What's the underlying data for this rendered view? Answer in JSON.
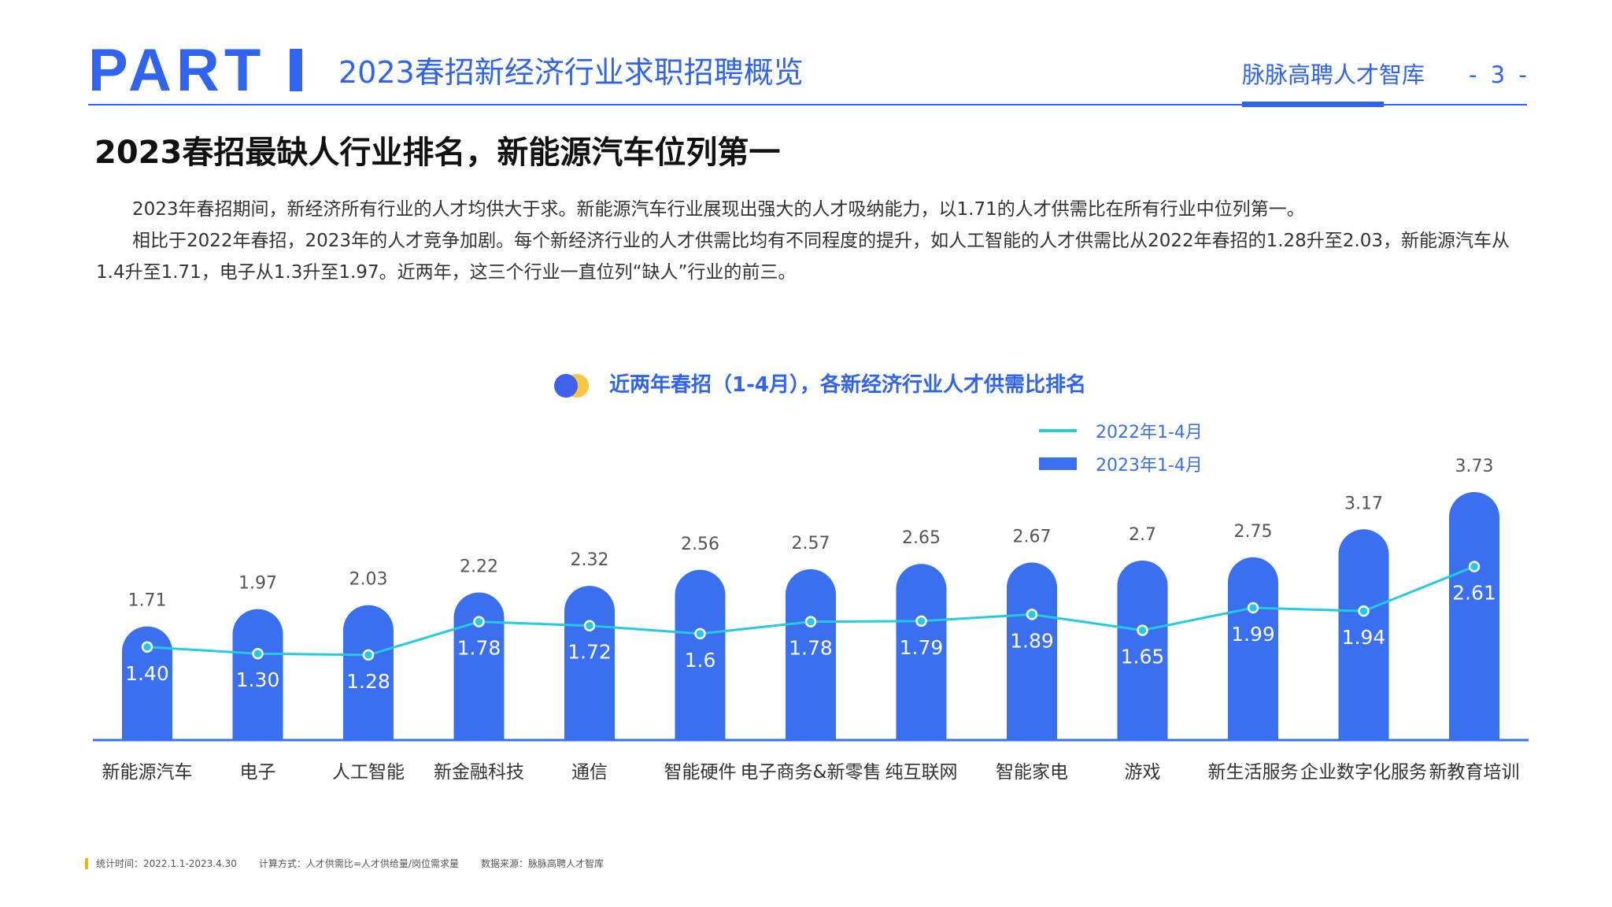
{
  "header": {
    "part_label": "PART",
    "section_title": "2023春招新经济行业求职招聘概览",
    "brand": "脉脉高聘人才智库",
    "page_number": "- 3 -"
  },
  "headline": "2023春招最缺人行业排名，新能源汽车位列第一",
  "body": {
    "paragraph_1": "2023年春招期间，新经济所有行业的人才均供大于求。新能源汽车行业展现出强大的人才吸纳能力，以1.71的人才供需比在所有行业中位列第一。",
    "paragraph_2": "相比于2022年春招，2023年的人才竞争加剧。每个新经济行业的人才供需比均有不同程度的提升，如人工智能的人才供需比从2022年春招的1.28升至2.03，新能源汽车从1.4升至1.71，电子从1.3升至1.97。近两年，这三个行业一直位列“缺人”行业的前三。"
  },
  "colors": {
    "accent": "#2f63f0",
    "bar": "#3a70ef",
    "line": "#25c9e3",
    "yellow": "#f6c744"
  },
  "chart_data": {
    "type": "bar",
    "title": "近两年春招（1-4月），各新经济行业人才供需比排名",
    "categories": [
      "新能源汽车",
      "电子",
      "人工智能",
      "新金融科技",
      "通信",
      "智能硬件",
      "电子商务&新零售",
      "纯互联网",
      "智能家电",
      "游戏",
      "新生活服务",
      "企业数字化服务",
      "新教育培训"
    ],
    "series": [
      {
        "name": "2023年1-4月",
        "kind": "bar",
        "values": [
          1.71,
          1.97,
          2.03,
          2.22,
          2.32,
          2.56,
          2.57,
          2.65,
          2.67,
          2.7,
          2.75,
          3.17,
          3.73
        ],
        "labels": [
          "1.71",
          "1.97",
          "2.03",
          "2.22",
          "2.32",
          "2.56",
          "2.57",
          "2.65",
          "2.67",
          "2.7",
          "2.75",
          "3.17",
          "3.73"
        ]
      },
      {
        "name": "2022年1-4月",
        "kind": "line",
        "values": [
          1.4,
          1.3,
          1.28,
          1.78,
          1.72,
          1.6,
          1.78,
          1.79,
          1.89,
          1.65,
          1.99,
          1.94,
          2.61
        ],
        "labels": [
          "1.40",
          "1.30",
          "1.28",
          "1.78",
          "1.72",
          "1.6",
          "1.78",
          "1.79",
          "1.89",
          "1.65",
          "1.99",
          "1.94",
          "2.61"
        ]
      }
    ],
    "legend": [
      "2022年1-4月",
      "2023年1-4月"
    ],
    "xlabel": "",
    "ylabel": "",
    "ylim": [
      0,
      4
    ],
    "grid": false
  },
  "footnote": {
    "period": "统计时间：2022.1.1-2023.4.30",
    "method": "计算方式：人才供需比=人才供给量/岗位需求量",
    "source": "数据来源：脉脉高聘人才智库"
  }
}
